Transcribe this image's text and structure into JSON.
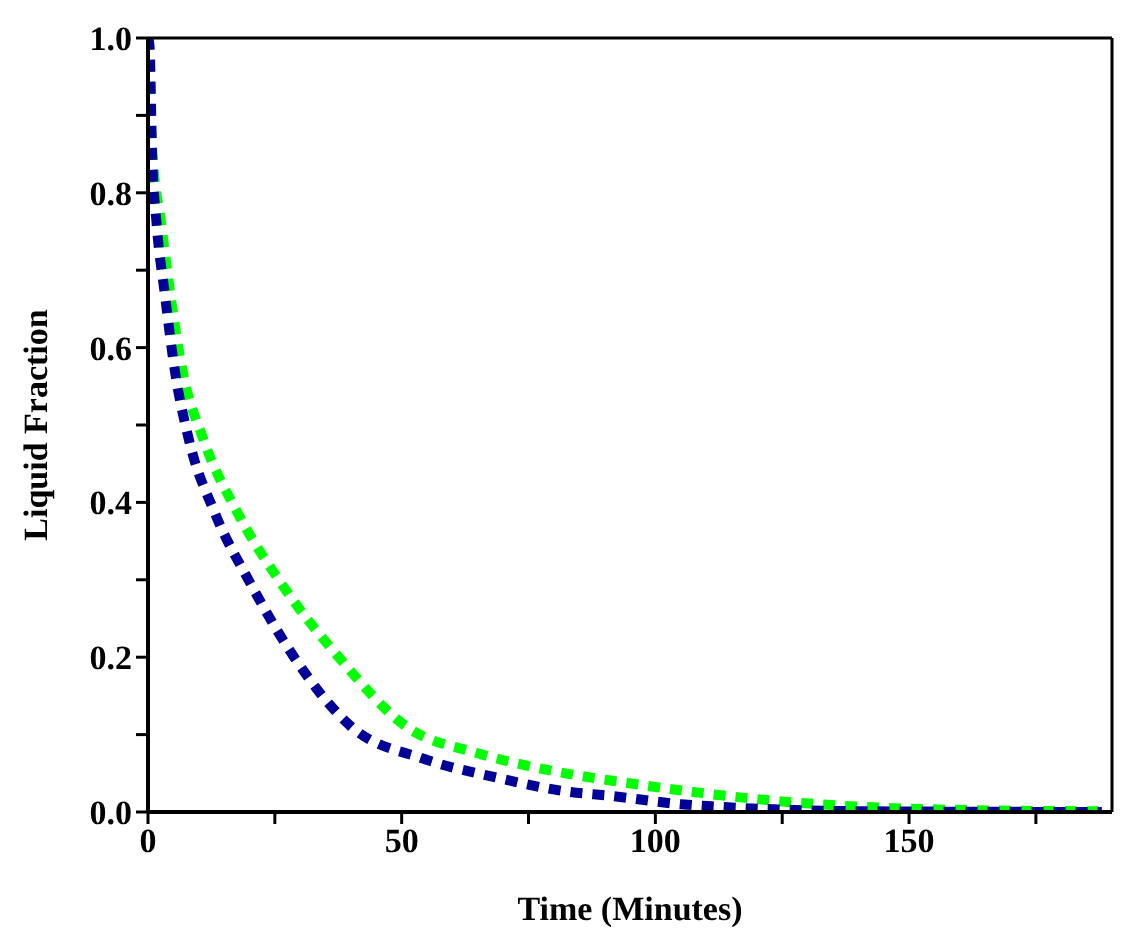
{
  "chart_data": {
    "type": "line",
    "xlabel": "Time (Minutes)",
    "ylabel": "Liquid Fraction",
    "xlim": [
      0,
      190
    ],
    "ylim": [
      0,
      1
    ],
    "xticks": [
      0,
      {
        "value": 25,
        "label": null
      },
      50,
      {
        "value": 75,
        "label": null
      },
      100,
      {
        "value": 125,
        "label": null
      },
      150,
      {
        "value": 175,
        "label": null
      }
    ],
    "yticks": [
      {
        "value": 0,
        "label": "0.0"
      },
      {
        "value": 0.1,
        "label": null
      },
      {
        "value": 0.2,
        "label": "0.2"
      },
      {
        "value": 0.3,
        "label": null
      },
      {
        "value": 0.4,
        "label": "0.4"
      },
      {
        "value": 0.5,
        "label": null
      },
      {
        "value": 0.6,
        "label": "0.6"
      },
      {
        "value": 0.7,
        "label": null
      },
      {
        "value": 0.8,
        "label": "0.8"
      },
      {
        "value": 0.9,
        "label": null
      },
      {
        "value": 1,
        "label": "1.0"
      }
    ],
    "grid": false,
    "legend": false,
    "line_style": "dashed",
    "marker": "none",
    "series": [
      {
        "color": "#00ff00",
        "x": [
          0,
          0.8,
          2.6,
          6.8,
          11,
          17.7,
          26.4,
          37.6,
          51,
          65,
          79,
          94,
          108.5,
          122.7,
          137,
          151.5,
          166,
          188
        ],
        "values": [
          1,
          0.86,
          0.76,
          0.57,
          0.48,
          0.386,
          0.294,
          0.2,
          0.11,
          0.076,
          0.054,
          0.038,
          0.025,
          0.015,
          0.008,
          0.004,
          0.002,
          0.001
        ]
      },
      {
        "color": "#000099",
        "x": [
          0,
          0.3,
          0.8,
          1.7,
          3.3,
          5.3,
          8.1,
          13.2,
          20.3,
          28.8,
          40.1,
          54.2,
          69,
          83,
          91,
          105,
          112,
          141,
          188
        ],
        "values": [
          1,
          0.99,
          0.85,
          0.76,
          0.67,
          0.57,
          0.48,
          0.386,
          0.294,
          0.2,
          0.11,
          0.069,
          0.044,
          0.026,
          0.021,
          0.01,
          0.007,
          0.001,
          0
        ]
      }
    ]
  }
}
